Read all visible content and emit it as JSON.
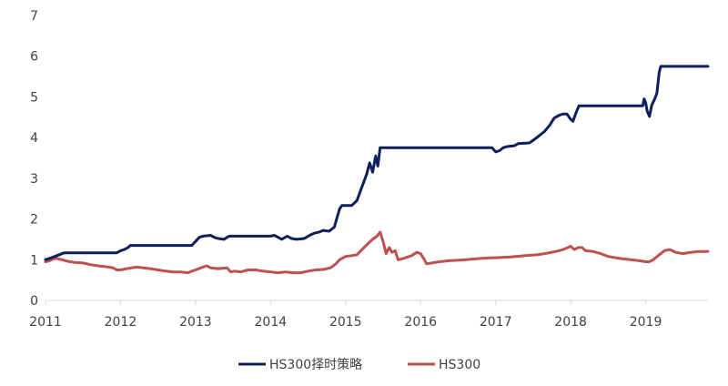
{
  "chart_data": {
    "type": "line",
    "xlim": [
      2011,
      2019.83
    ],
    "ylim": [
      0,
      7
    ],
    "x_ticks": [
      {
        "value": 2011,
        "label": "2011"
      },
      {
        "value": 2012,
        "label": "2012"
      },
      {
        "value": 2013,
        "label": "2013"
      },
      {
        "value": 2014,
        "label": "2014"
      },
      {
        "value": 2015,
        "label": "2015"
      },
      {
        "value": 2016,
        "label": "2016"
      },
      {
        "value": 2017,
        "label": "2017"
      },
      {
        "value": 2018,
        "label": "2018"
      },
      {
        "value": 2019,
        "label": "2019"
      }
    ],
    "y_ticks": [
      {
        "value": 0,
        "label": "0"
      },
      {
        "value": 1,
        "label": "1"
      },
      {
        "value": 2,
        "label": "2"
      },
      {
        "value": 3,
        "label": "3"
      },
      {
        "value": 4,
        "label": "4"
      },
      {
        "value": 5,
        "label": "5"
      },
      {
        "value": 6,
        "label": "6"
      },
      {
        "value": 7,
        "label": "7"
      }
    ],
    "grid": false,
    "legend_position": "bottom",
    "series": [
      {
        "name": "HS300择时策略",
        "color": "#0d1f5c",
        "points": [
          [
            2011.0,
            1.0
          ],
          [
            2011.08,
            1.05
          ],
          [
            2011.15,
            1.1
          ],
          [
            2011.25,
            1.17
          ],
          [
            2011.4,
            1.17
          ],
          [
            2011.6,
            1.17
          ],
          [
            2011.8,
            1.17
          ],
          [
            2011.95,
            1.17
          ],
          [
            2012.0,
            1.22
          ],
          [
            2012.05,
            1.25
          ],
          [
            2012.1,
            1.3
          ],
          [
            2012.13,
            1.35
          ],
          [
            2012.3,
            1.35
          ],
          [
            2012.5,
            1.35
          ],
          [
            2012.7,
            1.35
          ],
          [
            2012.95,
            1.35
          ],
          [
            2013.0,
            1.45
          ],
          [
            2013.05,
            1.55
          ],
          [
            2013.1,
            1.58
          ],
          [
            2013.2,
            1.6
          ],
          [
            2013.25,
            1.55
          ],
          [
            2013.3,
            1.52
          ],
          [
            2013.38,
            1.5
          ],
          [
            2013.42,
            1.55
          ],
          [
            2013.45,
            1.58
          ],
          [
            2013.7,
            1.58
          ],
          [
            2013.9,
            1.58
          ],
          [
            2014.0,
            1.58
          ],
          [
            2014.05,
            1.6
          ],
          [
            2014.1,
            1.55
          ],
          [
            2014.15,
            1.5
          ],
          [
            2014.22,
            1.58
          ],
          [
            2014.28,
            1.52
          ],
          [
            2014.35,
            1.5
          ],
          [
            2014.45,
            1.52
          ],
          [
            2014.52,
            1.6
          ],
          [
            2014.58,
            1.65
          ],
          [
            2014.65,
            1.68
          ],
          [
            2014.7,
            1.72
          ],
          [
            2014.78,
            1.7
          ],
          [
            2014.85,
            1.8
          ],
          [
            2014.88,
            2.0
          ],
          [
            2014.92,
            2.25
          ],
          [
            2014.95,
            2.33
          ],
          [
            2015.08,
            2.33
          ],
          [
            2015.15,
            2.45
          ],
          [
            2015.22,
            2.8
          ],
          [
            2015.28,
            3.1
          ],
          [
            2015.32,
            3.38
          ],
          [
            2015.36,
            3.15
          ],
          [
            2015.4,
            3.55
          ],
          [
            2015.43,
            3.3
          ],
          [
            2015.46,
            3.75
          ],
          [
            2015.7,
            3.75
          ],
          [
            2016.0,
            3.75
          ],
          [
            2016.4,
            3.75
          ],
          [
            2016.7,
            3.75
          ],
          [
            2016.95,
            3.75
          ],
          [
            2017.0,
            3.65
          ],
          [
            2017.05,
            3.68
          ],
          [
            2017.1,
            3.75
          ],
          [
            2017.15,
            3.78
          ],
          [
            2017.25,
            3.8
          ],
          [
            2017.3,
            3.85
          ],
          [
            2017.45,
            3.87
          ],
          [
            2017.55,
            4.0
          ],
          [
            2017.65,
            4.15
          ],
          [
            2017.72,
            4.3
          ],
          [
            2017.78,
            4.48
          ],
          [
            2017.85,
            4.55
          ],
          [
            2017.9,
            4.58
          ],
          [
            2017.95,
            4.58
          ],
          [
            2018.0,
            4.45
          ],
          [
            2018.03,
            4.4
          ],
          [
            2018.05,
            4.5
          ],
          [
            2018.08,
            4.65
          ],
          [
            2018.11,
            4.78
          ],
          [
            2018.4,
            4.78
          ],
          [
            2018.7,
            4.78
          ],
          [
            2018.96,
            4.78
          ],
          [
            2018.98,
            4.95
          ],
          [
            2019.0,
            4.85
          ],
          [
            2019.02,
            4.65
          ],
          [
            2019.05,
            4.52
          ],
          [
            2019.08,
            4.8
          ],
          [
            2019.12,
            4.95
          ],
          [
            2019.15,
            5.1
          ],
          [
            2019.18,
            5.6
          ],
          [
            2019.2,
            5.75
          ],
          [
            2019.4,
            5.75
          ],
          [
            2019.6,
            5.75
          ],
          [
            2019.83,
            5.75
          ]
        ]
      },
      {
        "name": "HS300",
        "color": "#c0504d",
        "points": [
          [
            2011.0,
            0.95
          ],
          [
            2011.05,
            0.97
          ],
          [
            2011.1,
            1.02
          ],
          [
            2011.15,
            1.03
          ],
          [
            2011.22,
            1.0
          ],
          [
            2011.3,
            0.96
          ],
          [
            2011.4,
            0.93
          ],
          [
            2011.5,
            0.92
          ],
          [
            2011.6,
            0.88
          ],
          [
            2011.7,
            0.85
          ],
          [
            2011.8,
            0.83
          ],
          [
            2011.9,
            0.8
          ],
          [
            2011.95,
            0.75
          ],
          [
            2012.0,
            0.75
          ],
          [
            2012.08,
            0.78
          ],
          [
            2012.15,
            0.8
          ],
          [
            2012.22,
            0.82
          ],
          [
            2012.3,
            0.8
          ],
          [
            2012.4,
            0.78
          ],
          [
            2012.5,
            0.75
          ],
          [
            2012.6,
            0.72
          ],
          [
            2012.7,
            0.7
          ],
          [
            2012.8,
            0.7
          ],
          [
            2012.9,
            0.68
          ],
          [
            2012.95,
            0.72
          ],
          [
            2013.0,
            0.75
          ],
          [
            2013.1,
            0.82
          ],
          [
            2013.15,
            0.85
          ],
          [
            2013.2,
            0.8
          ],
          [
            2013.3,
            0.78
          ],
          [
            2013.42,
            0.8
          ],
          [
            2013.47,
            0.7
          ],
          [
            2013.52,
            0.72
          ],
          [
            2013.6,
            0.7
          ],
          [
            2013.7,
            0.75
          ],
          [
            2013.8,
            0.75
          ],
          [
            2013.9,
            0.72
          ],
          [
            2014.0,
            0.7
          ],
          [
            2014.1,
            0.68
          ],
          [
            2014.2,
            0.7
          ],
          [
            2014.3,
            0.68
          ],
          [
            2014.4,
            0.68
          ],
          [
            2014.5,
            0.72
          ],
          [
            2014.6,
            0.75
          ],
          [
            2014.7,
            0.76
          ],
          [
            2014.8,
            0.8
          ],
          [
            2014.87,
            0.9
          ],
          [
            2014.92,
            1.0
          ],
          [
            2015.0,
            1.08
          ],
          [
            2015.08,
            1.1
          ],
          [
            2015.15,
            1.12
          ],
          [
            2015.22,
            1.25
          ],
          [
            2015.3,
            1.4
          ],
          [
            2015.36,
            1.5
          ],
          [
            2015.42,
            1.58
          ],
          [
            2015.46,
            1.68
          ],
          [
            2015.5,
            1.45
          ],
          [
            2015.54,
            1.15
          ],
          [
            2015.58,
            1.3
          ],
          [
            2015.62,
            1.18
          ],
          [
            2015.66,
            1.22
          ],
          [
            2015.7,
            1.0
          ],
          [
            2015.75,
            1.02
          ],
          [
            2015.8,
            1.05
          ],
          [
            2015.88,
            1.1
          ],
          [
            2015.95,
            1.18
          ],
          [
            2016.0,
            1.15
          ],
          [
            2016.05,
            1.0
          ],
          [
            2016.08,
            0.9
          ],
          [
            2016.15,
            0.92
          ],
          [
            2016.25,
            0.95
          ],
          [
            2016.4,
            0.98
          ],
          [
            2016.6,
            1.0
          ],
          [
            2016.8,
            1.03
          ],
          [
            2016.95,
            1.05
          ],
          [
            2017.0,
            1.05
          ],
          [
            2017.2,
            1.07
          ],
          [
            2017.4,
            1.1
          ],
          [
            2017.55,
            1.12
          ],
          [
            2017.65,
            1.15
          ],
          [
            2017.8,
            1.2
          ],
          [
            2017.9,
            1.25
          ],
          [
            2018.0,
            1.33
          ],
          [
            2018.05,
            1.25
          ],
          [
            2018.1,
            1.3
          ],
          [
            2018.15,
            1.3
          ],
          [
            2018.2,
            1.22
          ],
          [
            2018.3,
            1.2
          ],
          [
            2018.4,
            1.15
          ],
          [
            2018.5,
            1.08
          ],
          [
            2018.6,
            1.05
          ],
          [
            2018.7,
            1.02
          ],
          [
            2018.8,
            1.0
          ],
          [
            2018.9,
            0.98
          ],
          [
            2019.0,
            0.95
          ],
          [
            2019.05,
            0.95
          ],
          [
            2019.1,
            1.0
          ],
          [
            2019.18,
            1.12
          ],
          [
            2019.25,
            1.22
          ],
          [
            2019.32,
            1.25
          ],
          [
            2019.4,
            1.18
          ],
          [
            2019.5,
            1.15
          ],
          [
            2019.6,
            1.18
          ],
          [
            2019.7,
            1.2
          ],
          [
            2019.83,
            1.2
          ]
        ]
      }
    ]
  }
}
